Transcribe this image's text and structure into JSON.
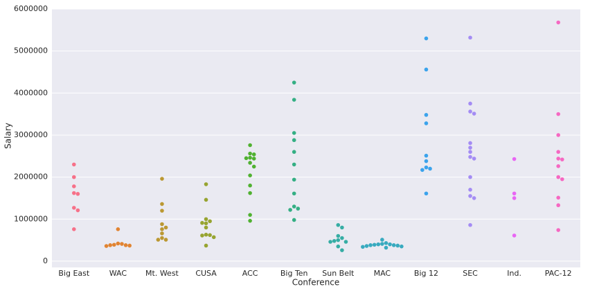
{
  "chart_data": {
    "type": "swarm",
    "x_label": "Conference",
    "y_label": "Salary",
    "categories": [
      "Big East",
      "WAC",
      "Mt. West",
      "CUSA",
      "ACC",
      "Big Ten",
      "Sun Belt",
      "MAC",
      "Big 12",
      "SEC",
      "Ind.",
      "PAC-12"
    ],
    "colors": [
      "#f77189",
      "#e18432",
      "#bb9832",
      "#97a431",
      "#50b131",
      "#34af84",
      "#36ada4",
      "#38aabf",
      "#3ba3ec",
      "#a48cf4",
      "#e866f4",
      "#f668c2"
    ],
    "values": [
      [
        2300000,
        2000000,
        1780000,
        1620000,
        1600000,
        1270000,
        1210000,
        760000
      ],
      [
        760000,
        420000,
        410000,
        390000,
        380000,
        380000,
        370000,
        360000
      ],
      [
        1960000,
        1360000,
        1200000,
        880000,
        800000,
        760000,
        660000,
        550000,
        510000,
        510000
      ],
      [
        1830000,
        1460000,
        1000000,
        950000,
        910000,
        900000,
        800000,
        630000,
        620000,
        610000,
        570000,
        370000
      ],
      [
        2760000,
        2560000,
        2540000,
        2460000,
        2450000,
        2440000,
        2340000,
        2250000,
        2040000,
        1800000,
        1620000,
        1100000,
        960000
      ],
      [
        4250000,
        3840000,
        3050000,
        2880000,
        2600000,
        2300000,
        1940000,
        1610000,
        1300000,
        1250000,
        1220000,
        980000
      ],
      [
        860000,
        800000,
        600000,
        550000,
        500000,
        480000,
        460000,
        460000,
        350000,
        260000
      ],
      [
        510000,
        430000,
        410000,
        400000,
        400000,
        390000,
        380000,
        380000,
        370000,
        360000,
        350000,
        340000,
        320000
      ],
      [
        5300000,
        4560000,
        3480000,
        3280000,
        2510000,
        2380000,
        2230000,
        2200000,
        2170000,
        1610000
      ],
      [
        5320000,
        3750000,
        3560000,
        3510000,
        2810000,
        2700000,
        2600000,
        2480000,
        2440000,
        2000000,
        1700000,
        1550000,
        1500000,
        860000
      ],
      [
        2430000,
        1610000,
        1500000,
        610000
      ],
      [
        5680000,
        3500000,
        3000000,
        2600000,
        2440000,
        2420000,
        2260000,
        2000000,
        1950000,
        1510000,
        1330000,
        740000
      ]
    ],
    "ylim": [
      -150000,
      6000000
    ],
    "yticks": [
      0,
      1000000,
      2000000,
      3000000,
      4000000,
      5000000,
      6000000
    ],
    "grid": true
  }
}
